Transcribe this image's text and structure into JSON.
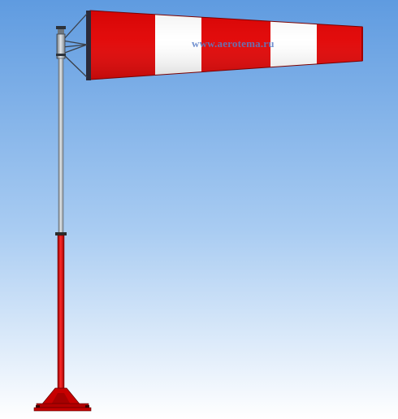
{
  "scene": {
    "subject": "windsock",
    "watermark": "www.aerotema.ru",
    "colors": {
      "sky_top": "#5f9be0",
      "sky_bottom": "#ffffff",
      "sock_red": "#e10000",
      "sock_white": "#ffffff",
      "mast_grey": "#9aa4ad",
      "mast_red": "#d80000",
      "base_red": "#c70000"
    }
  }
}
